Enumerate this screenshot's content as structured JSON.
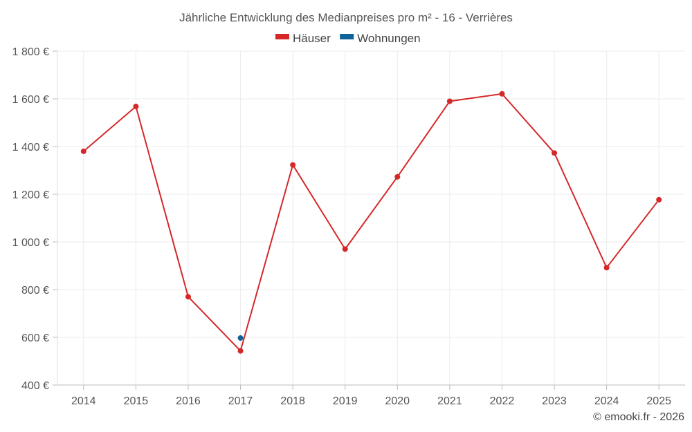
{
  "chart_data": {
    "type": "line",
    "title": "Jährliche Entwicklung des Medianpreises pro m² - 16 - Verrières",
    "categories": [
      "2014",
      "2015",
      "2016",
      "2017",
      "2018",
      "2019",
      "2020",
      "2021",
      "2022",
      "2023",
      "2024",
      "2025"
    ],
    "series": [
      {
        "name": "Häuser",
        "color": "#d62728",
        "values": [
          1380,
          1568,
          770,
          543,
          1323,
          970,
          1273,
          1590,
          1621,
          1373,
          892,
          1177
        ]
      },
      {
        "name": "Wohnungen",
        "color": "#0e6399",
        "values": [
          null,
          null,
          null,
          597,
          null,
          null,
          null,
          null,
          null,
          null,
          null,
          null
        ]
      }
    ],
    "yticks": [
      400,
      600,
      800,
      1000,
      1200,
      1400,
      1600,
      1800
    ],
    "ytick_labels": [
      "400 €",
      "600 €",
      "800 €",
      "1 000 €",
      "1 200 €",
      "1 400 €",
      "1 600 €",
      "1 800 €"
    ],
    "ylim": [
      400,
      1800
    ],
    "grid": true,
    "legend_position": "top-center"
  },
  "credit": "© emooki.fr - 2026"
}
